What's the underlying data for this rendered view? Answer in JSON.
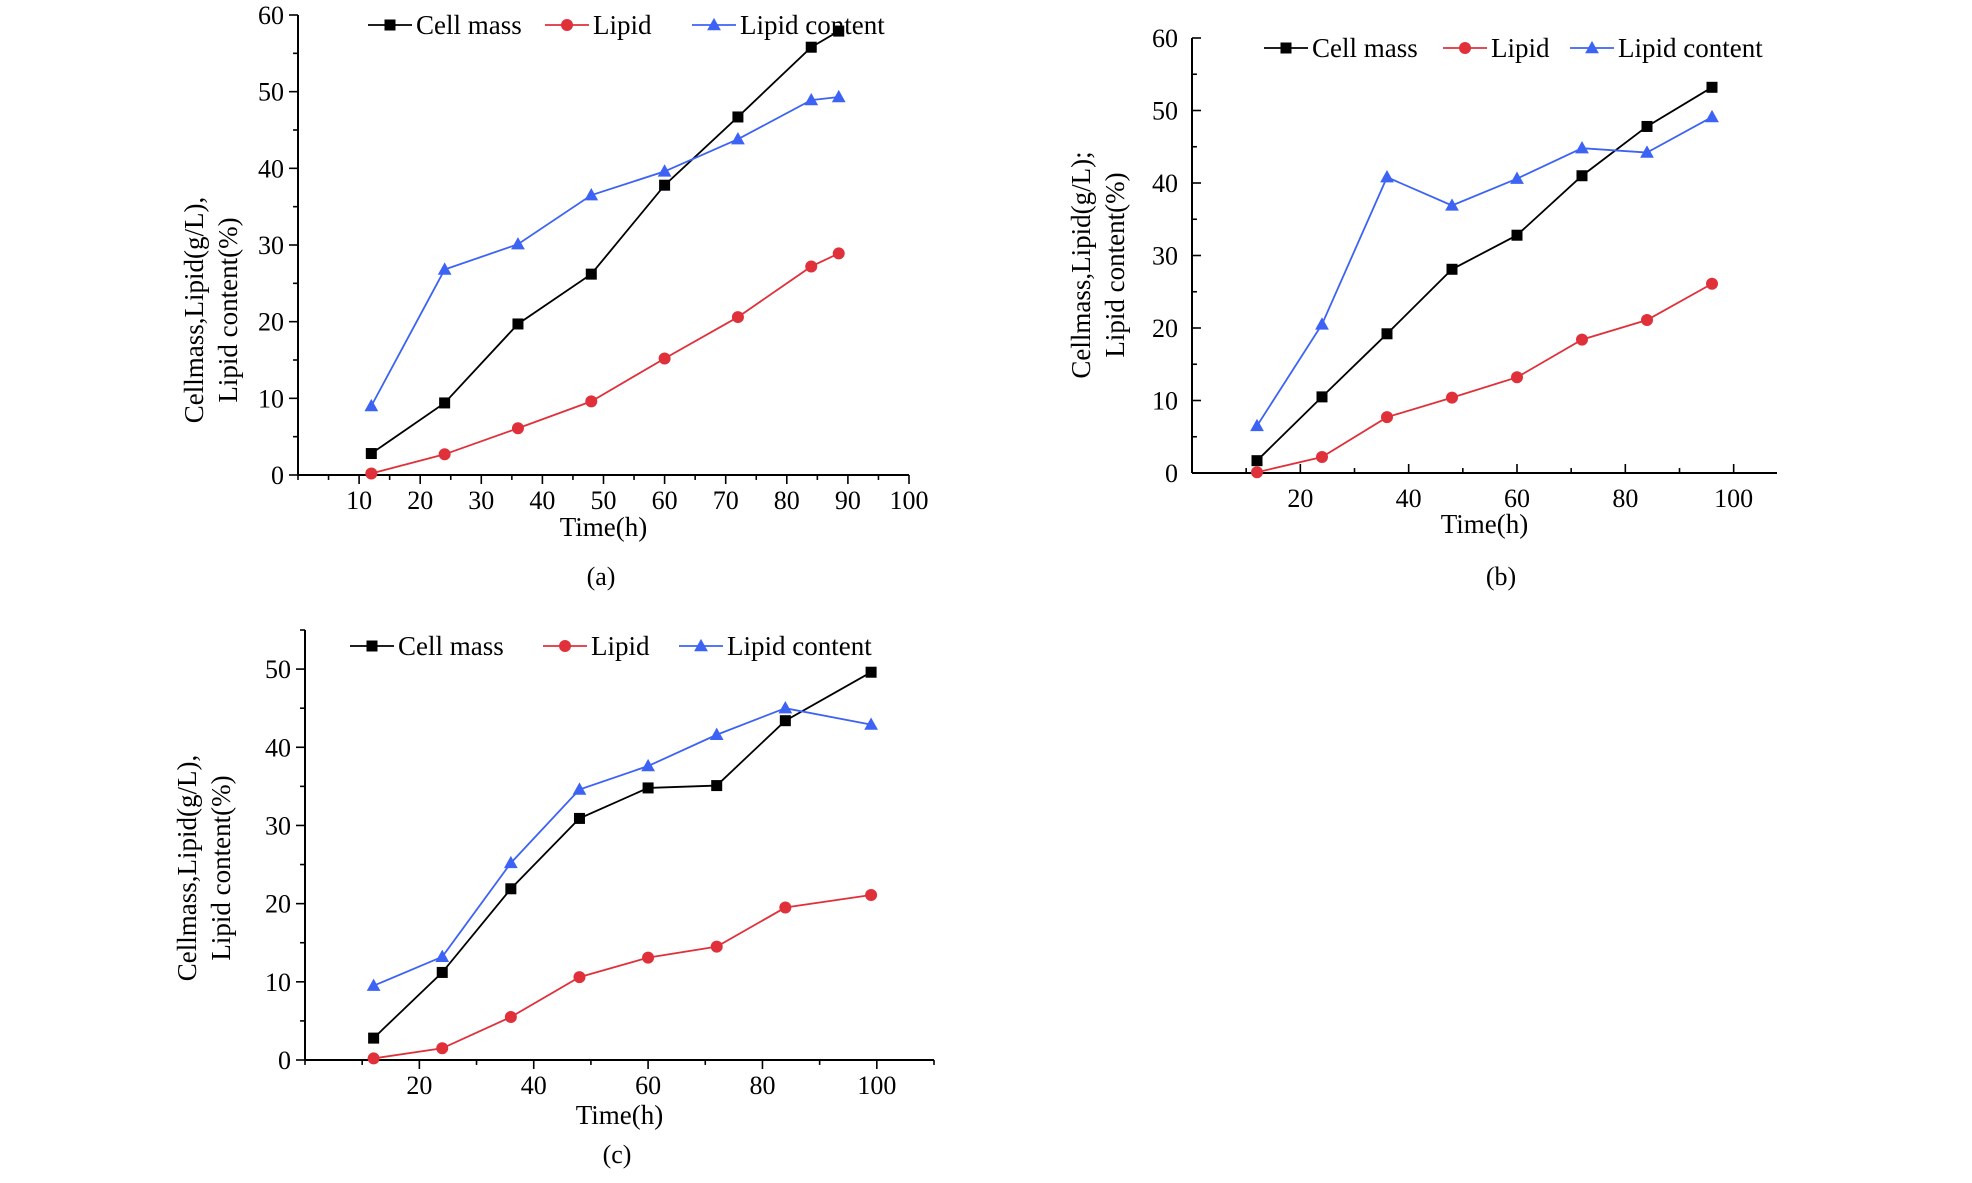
{
  "figure_labels": [
    "(a)",
    "(b)",
    "(c)"
  ],
  "chart_data": [
    {
      "id": "a",
      "type": "line",
      "panel_label": "(a)",
      "xlabel": "Time(h)",
      "ylabel_lines": [
        "Cellmass,Lipid(g/L),",
        "Lipid content(%)"
      ],
      "xlim": [
        0,
        100
      ],
      "ylim": [
        0,
        60
      ],
      "xticks": [
        10,
        20,
        30,
        40,
        50,
        60,
        70,
        80,
        90,
        100
      ],
      "yticks": [
        0,
        10,
        20,
        30,
        40,
        50,
        60
      ],
      "legend": [
        "Cell mass",
        "Lipid",
        "Lipid content"
      ],
      "series": [
        {
          "name": "Cell mass",
          "color": "#000000",
          "marker": "square",
          "x": [
            12,
            24,
            36,
            48,
            60,
            72,
            84,
            88.5
          ],
          "y": [
            2.8,
            9.4,
            19.7,
            26.2,
            37.8,
            46.7,
            55.8,
            57.9
          ]
        },
        {
          "name": "Lipid",
          "color": "#e0313b",
          "marker": "circle",
          "x": [
            12,
            24,
            36,
            48,
            60,
            72,
            84,
            88.5
          ],
          "y": [
            0.2,
            2.7,
            6.1,
            9.6,
            15.2,
            20.6,
            27.2,
            28.9
          ]
        },
        {
          "name": "Lipid content",
          "color": "#3d63f5",
          "marker": "triangle",
          "x": [
            12,
            24,
            36,
            48,
            60,
            72,
            84,
            88.5
          ],
          "y": [
            9.0,
            26.8,
            30.1,
            36.5,
            39.6,
            43.8,
            48.9,
            49.3
          ]
        }
      ]
    },
    {
      "id": "b",
      "type": "line",
      "panel_label": "(b)",
      "xlabel": "Time(h)",
      "ylabel_lines": [
        "Cellmass,Lipid(g/L);",
        "Lipid content(%)"
      ],
      "xlim": [
        0,
        108
      ],
      "ylim": [
        0,
        60
      ],
      "xticks": [
        20,
        40,
        60,
        80,
        100
      ],
      "yticks": [
        0,
        10,
        20,
        30,
        40,
        50,
        60
      ],
      "legend": [
        "Cell mass",
        "Lipid",
        "Lipid content"
      ],
      "series": [
        {
          "name": "Cell mass",
          "color": "#000000",
          "marker": "square",
          "x": [
            12,
            24,
            36,
            48,
            60,
            72,
            84,
            96
          ],
          "y": [
            1.7,
            10.5,
            19.2,
            28.1,
            32.8,
            41.0,
            47.8,
            53.2
          ]
        },
        {
          "name": "Lipid",
          "color": "#e0313b",
          "marker": "circle",
          "x": [
            12,
            24,
            36,
            48,
            60,
            72,
            84,
            96
          ],
          "y": [
            0.1,
            2.2,
            7.7,
            10.4,
            13.2,
            18.4,
            21.1,
            26.1
          ]
        },
        {
          "name": "Lipid content",
          "color": "#3d63f5",
          "marker": "triangle",
          "x": [
            12,
            24,
            36,
            48,
            60,
            72,
            84,
            96
          ],
          "y": [
            6.5,
            20.5,
            40.8,
            36.9,
            40.6,
            44.8,
            44.2,
            49.1
          ]
        }
      ]
    },
    {
      "id": "c",
      "type": "line",
      "panel_label": "(c)",
      "xlabel": "Time(h)",
      "ylabel_lines": [
        "Cellmass,Lipid(g/L),",
        "Lipid content(%)"
      ],
      "xlim": [
        0,
        110
      ],
      "ylim": [
        0,
        55
      ],
      "xticks": [
        20,
        40,
        60,
        80,
        100
      ],
      "yticks": [
        0,
        10,
        20,
        30,
        40,
        50
      ],
      "legend": [
        "Cell mass",
        "Lipid",
        "Lipid content"
      ],
      "series": [
        {
          "name": "Cell mass",
          "color": "#000000",
          "marker": "square",
          "x": [
            12,
            24,
            36,
            48,
            60,
            72,
            84,
            99
          ],
          "y": [
            2.8,
            11.2,
            21.9,
            30.9,
            34.8,
            35.1,
            43.4,
            49.6
          ]
        },
        {
          "name": "Lipid",
          "color": "#e0313b",
          "marker": "circle",
          "x": [
            12,
            24,
            36,
            48,
            60,
            72,
            84,
            99
          ],
          "y": [
            0.2,
            1.5,
            5.5,
            10.6,
            13.1,
            14.5,
            19.5,
            21.1
          ]
        },
        {
          "name": "Lipid content",
          "color": "#3d63f5",
          "marker": "triangle",
          "x": [
            12,
            24,
            36,
            48,
            60,
            72,
            84,
            99
          ],
          "y": [
            9.5,
            13.2,
            25.2,
            34.6,
            37.6,
            41.6,
            45.0,
            42.9
          ]
        }
      ]
    }
  ]
}
